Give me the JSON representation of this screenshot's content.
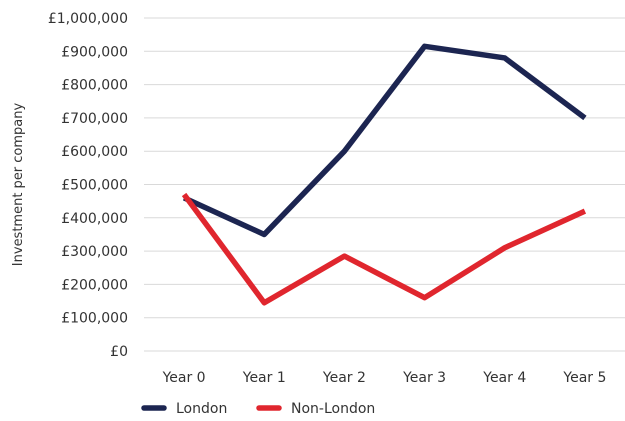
{
  "chart_data": {
    "type": "line",
    "categories": [
      "Year 0",
      "Year 1",
      "Year 2",
      "Year 3",
      "Year 4",
      "Year 5"
    ],
    "series": [
      {
        "name": "London",
        "color": "#1c2551",
        "values": [
          460000,
          350000,
          600000,
          915000,
          880000,
          700000
        ]
      },
      {
        "name": "Non-London",
        "color": "#e0262e",
        "values": [
          470000,
          145000,
          285000,
          160000,
          310000,
          420000
        ]
      }
    ],
    "ylabel": "Investment per company",
    "ylim": [
      0,
      1000000
    ],
    "yticks": [
      0,
      100000,
      200000,
      300000,
      400000,
      500000,
      600000,
      700000,
      800000,
      900000,
      1000000
    ],
    "ytick_labels": [
      "£0",
      "£100,000",
      "£200,000",
      "£300,000",
      "£400,000",
      "£500,000",
      "£600,000",
      "£700,000",
      "£800,000",
      "£900,000",
      "£1,000,000"
    ],
    "grid": true,
    "legend_position": "bottom"
  }
}
